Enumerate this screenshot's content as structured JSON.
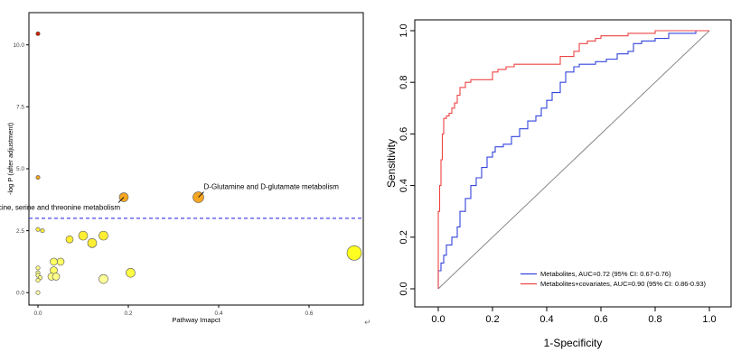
{
  "chart_data": [
    {
      "type": "scatter",
      "xlabel": "Pathway Imapct",
      "ylabel": "-log P (after adjustment)",
      "xlim": [
        -0.02,
        0.72
      ],
      "ylim": [
        -0.5,
        11.3
      ],
      "x_ticks": [
        0.0,
        0.2,
        0.4,
        0.6
      ],
      "x_tick_labels": [
        "0.0",
        "0.2",
        "0.4",
        "0.6"
      ],
      "y_ticks": [
        0.0,
        2.5,
        5.0,
        7.5,
        10.0
      ],
      "y_tick_labels": [
        "0.0",
        "2.5",
        "5.0",
        "7.5",
        "10.0"
      ],
      "threshold": {
        "y": 3.0,
        "color": "#4a4ae8",
        "style": "dashed"
      },
      "points": [
        {
          "x": 0.0,
          "y": 10.45,
          "size": 1,
          "color": "#cc2200"
        },
        {
          "x": 0.0,
          "y": 4.65,
          "size": 1,
          "color": "#f0a020"
        },
        {
          "x": 0.19,
          "y": 3.85,
          "size": 3,
          "color": "#f5a623"
        },
        {
          "x": 0.355,
          "y": 3.85,
          "size": 4,
          "color": "#f5a623"
        },
        {
          "x": 0.0,
          "y": 2.55,
          "size": 1,
          "color": "#ffee44"
        },
        {
          "x": 0.01,
          "y": 2.5,
          "size": 1,
          "color": "#ffee44"
        },
        {
          "x": 0.07,
          "y": 2.15,
          "size": 2,
          "color": "#ffee33"
        },
        {
          "x": 0.1,
          "y": 2.3,
          "size": 3,
          "color": "#ffee33"
        },
        {
          "x": 0.12,
          "y": 2.0,
          "size": 3,
          "color": "#ffee33"
        },
        {
          "x": 0.145,
          "y": 2.3,
          "size": 3,
          "color": "#ffee33"
        },
        {
          "x": 0.7,
          "y": 1.6,
          "size": 5,
          "color": "#ffff22"
        },
        {
          "x": 0.05,
          "y": 1.25,
          "size": 2,
          "color": "#ffff66"
        },
        {
          "x": 0.035,
          "y": 1.25,
          "size": 2,
          "color": "#ffff66"
        },
        {
          "x": 0.035,
          "y": 0.9,
          "size": 2,
          "color": "#ffff66"
        },
        {
          "x": 0.0,
          "y": 1.0,
          "size": 1,
          "color": "#ffff88"
        },
        {
          "x": 0.0,
          "y": 0.8,
          "size": 1,
          "color": "#ffff88"
        },
        {
          "x": 0.0,
          "y": 0.7,
          "size": 1,
          "color": "#ffff88"
        },
        {
          "x": 0.005,
          "y": 0.6,
          "size": 1,
          "color": "#ffff88"
        },
        {
          "x": 0.0,
          "y": 0.5,
          "size": 1,
          "color": "#ffff88"
        },
        {
          "x": 0.0,
          "y": 0.0,
          "size": 1,
          "color": "#ffffaa"
        },
        {
          "x": 0.03,
          "y": 0.65,
          "size": 2,
          "color": "#ffff88"
        },
        {
          "x": 0.04,
          "y": 0.65,
          "size": 2,
          "color": "#ffff88"
        },
        {
          "x": 0.145,
          "y": 0.55,
          "size": 3,
          "color": "#ffff99"
        },
        {
          "x": 0.205,
          "y": 0.8,
          "size": 3,
          "color": "#ffff44"
        }
      ],
      "annotations": [
        {
          "text": "D-Glutamine and D-glutamate metabolism",
          "x": 0.355,
          "y": 3.85,
          "anchor": "above-right"
        },
        {
          "text": "Glycine, serine and threonine metabolism",
          "x": 0.19,
          "y": 3.85,
          "anchor": "below-left"
        }
      ]
    },
    {
      "type": "line",
      "xlabel": "1-Specificity",
      "ylabel": "Sensitivity",
      "xlim": [
        0,
        1
      ],
      "ylim": [
        0,
        1
      ],
      "x_ticks": [
        0.0,
        0.2,
        0.4,
        0.6,
        0.8,
        1.0
      ],
      "x_tick_labels": [
        "0.0",
        "0.2",
        "0.4",
        "0.6",
        "0.8",
        "1.0"
      ],
      "y_ticks": [
        0.0,
        0.2,
        0.4,
        0.6,
        0.8,
        1.0
      ],
      "y_tick_labels": [
        "0.0",
        "0.2",
        "0.4",
        "0.6",
        "0.8",
        "1.0"
      ],
      "legend_position": "bottom-right",
      "series": [
        {
          "name": "Metabolites, AUC=0.72 (95% CI: 0.67-0.76)",
          "color": "#3344dd",
          "x": [
            0,
            0.01,
            0.02,
            0.03,
            0.05,
            0.07,
            0.08,
            0.1,
            0.12,
            0.14,
            0.16,
            0.18,
            0.2,
            0.21,
            0.22,
            0.24,
            0.27,
            0.3,
            0.33,
            0.36,
            0.38,
            0.4,
            0.42,
            0.45,
            0.47,
            0.5,
            0.52,
            0.55,
            0.58,
            0.62,
            0.66,
            0.7,
            0.72,
            0.75,
            0.8,
            0.85,
            0.9,
            0.95,
            1.0
          ],
          "y": [
            0,
            0.07,
            0.1,
            0.13,
            0.17,
            0.2,
            0.24,
            0.3,
            0.35,
            0.4,
            0.43,
            0.47,
            0.51,
            0.53,
            0.55,
            0.55,
            0.56,
            0.59,
            0.62,
            0.65,
            0.67,
            0.7,
            0.73,
            0.76,
            0.8,
            0.84,
            0.86,
            0.87,
            0.87,
            0.88,
            0.89,
            0.91,
            0.92,
            0.95,
            0.96,
            0.97,
            0.99,
            0.99,
            1.0
          ]
        },
        {
          "name": "Metabolites+covariates, AUC=0.90 (95% CI: 0.86-0.93)",
          "color": "#ee4444",
          "x": [
            0,
            0.005,
            0.01,
            0.015,
            0.02,
            0.03,
            0.04,
            0.05,
            0.06,
            0.07,
            0.08,
            0.1,
            0.12,
            0.2,
            0.22,
            0.25,
            0.28,
            0.3,
            0.45,
            0.5,
            0.52,
            0.55,
            0.58,
            0.6,
            0.7,
            0.8,
            0.9,
            1.0
          ],
          "y": [
            0,
            0.3,
            0.4,
            0.5,
            0.6,
            0.66,
            0.67,
            0.68,
            0.7,
            0.72,
            0.75,
            0.78,
            0.8,
            0.81,
            0.84,
            0.85,
            0.86,
            0.87,
            0.87,
            0.9,
            0.92,
            0.95,
            0.96,
            0.97,
            0.98,
            0.99,
            1.0,
            1.0
          ]
        }
      ],
      "diagonal": {
        "color": "#888888"
      }
    }
  ]
}
